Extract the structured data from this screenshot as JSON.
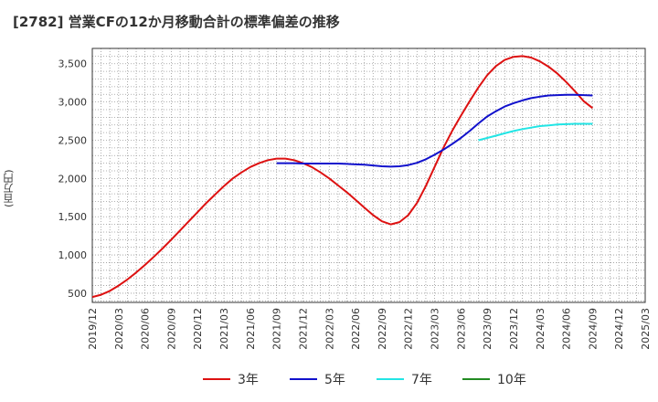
{
  "title": "[2782]  営業CFの12か月移動合計の標準偏差の推移",
  "chart_data": {
    "type": "line",
    "title": "[2782]  営業CFの12か月移動合計の標準偏差の推移",
    "xlabel": "",
    "ylabel": "(百万円)",
    "ylim": [
      380,
      3700
    ],
    "grid": true,
    "legend_placement": "bottom",
    "x_ticks": [
      "2019/12",
      "2020/03",
      "2020/06",
      "2020/09",
      "2020/12",
      "2021/03",
      "2021/06",
      "2021/09",
      "2021/12",
      "2022/03",
      "2022/06",
      "2022/09",
      "2022/12",
      "2023/03",
      "2023/06",
      "2023/09",
      "2023/12",
      "2024/03",
      "2024/06",
      "2024/09",
      "2024/12",
      "2025/03"
    ],
    "y_ticks": [
      500,
      1000,
      1500,
      2000,
      2500,
      3000,
      3500
    ],
    "y_tick_labels": [
      "500",
      "1,000",
      "1,500",
      "2,000",
      "2,500",
      "3,000",
      "3,500"
    ],
    "series": [
      {
        "name": "3年",
        "color": "#dd1111",
        "points": [
          [
            "2019/12",
            450
          ],
          [
            "2020/01",
            480
          ],
          [
            "2020/02",
            530
          ],
          [
            "2020/03",
            600
          ],
          [
            "2020/04",
            680
          ],
          [
            "2020/05",
            770
          ],
          [
            "2020/06",
            870
          ],
          [
            "2020/07",
            975
          ],
          [
            "2020/08",
            1085
          ],
          [
            "2020/09",
            1200
          ],
          [
            "2020/10",
            1320
          ],
          [
            "2020/11",
            1440
          ],
          [
            "2020/12",
            1560
          ],
          [
            "2021/01",
            1680
          ],
          [
            "2021/02",
            1790
          ],
          [
            "2021/03",
            1900
          ],
          [
            "2021/04",
            2000
          ],
          [
            "2021/05",
            2080
          ],
          [
            "2021/06",
            2150
          ],
          [
            "2021/07",
            2200
          ],
          [
            "2021/08",
            2240
          ],
          [
            "2021/09",
            2260
          ],
          [
            "2021/10",
            2260
          ],
          [
            "2021/11",
            2240
          ],
          [
            "2021/12",
            2200
          ],
          [
            "2022/01",
            2150
          ],
          [
            "2022/02",
            2080
          ],
          [
            "2022/03",
            2000
          ],
          [
            "2022/04",
            1910
          ],
          [
            "2022/05",
            1820
          ],
          [
            "2022/06",
            1720
          ],
          [
            "2022/07",
            1620
          ],
          [
            "2022/08",
            1520
          ],
          [
            "2022/09",
            1440
          ],
          [
            "2022/10",
            1400
          ],
          [
            "2022/11",
            1430
          ],
          [
            "2022/12",
            1520
          ],
          [
            "2023/01",
            1680
          ],
          [
            "2023/02",
            1900
          ],
          [
            "2023/03",
            2150
          ],
          [
            "2023/04",
            2400
          ],
          [
            "2023/05",
            2620
          ],
          [
            "2023/06",
            2820
          ],
          [
            "2023/07",
            3010
          ],
          [
            "2023/08",
            3190
          ],
          [
            "2023/09",
            3350
          ],
          [
            "2023/10",
            3470
          ],
          [
            "2023/11",
            3550
          ],
          [
            "2023/12",
            3590
          ],
          [
            "2024/01",
            3600
          ],
          [
            "2024/02",
            3580
          ],
          [
            "2024/03",
            3530
          ],
          [
            "2024/04",
            3460
          ],
          [
            "2024/05",
            3370
          ],
          [
            "2024/06",
            3260
          ],
          [
            "2024/07",
            3140
          ],
          [
            "2024/08",
            3010
          ],
          [
            "2024/09",
            2920
          ]
        ]
      },
      {
        "name": "5年",
        "color": "#1111cc",
        "points": [
          [
            "2021/09",
            2200
          ],
          [
            "2021/10",
            2200
          ],
          [
            "2021/11",
            2200
          ],
          [
            "2021/12",
            2195
          ],
          [
            "2022/01",
            2195
          ],
          [
            "2022/02",
            2195
          ],
          [
            "2022/03",
            2195
          ],
          [
            "2022/04",
            2195
          ],
          [
            "2022/05",
            2190
          ],
          [
            "2022/06",
            2185
          ],
          [
            "2022/07",
            2180
          ],
          [
            "2022/08",
            2170
          ],
          [
            "2022/09",
            2160
          ],
          [
            "2022/10",
            2155
          ],
          [
            "2022/11",
            2160
          ],
          [
            "2022/12",
            2175
          ],
          [
            "2023/01",
            2205
          ],
          [
            "2023/02",
            2250
          ],
          [
            "2023/03",
            2310
          ],
          [
            "2023/04",
            2375
          ],
          [
            "2023/05",
            2450
          ],
          [
            "2023/06",
            2530
          ],
          [
            "2023/07",
            2620
          ],
          [
            "2023/08",
            2720
          ],
          [
            "2023/09",
            2810
          ],
          [
            "2023/10",
            2880
          ],
          [
            "2023/11",
            2940
          ],
          [
            "2023/12",
            2985
          ],
          [
            "2024/01",
            3020
          ],
          [
            "2024/02",
            3050
          ],
          [
            "2024/03",
            3070
          ],
          [
            "2024/04",
            3085
          ],
          [
            "2024/05",
            3090
          ],
          [
            "2024/06",
            3095
          ],
          [
            "2024/07",
            3095
          ],
          [
            "2024/08",
            3090
          ],
          [
            "2024/09",
            3085
          ]
        ]
      },
      {
        "name": "7年",
        "color": "#22e5e5",
        "points": [
          [
            "2023/08",
            2500
          ],
          [
            "2023/09",
            2530
          ],
          [
            "2023/10",
            2560
          ],
          [
            "2023/11",
            2590
          ],
          [
            "2023/12",
            2620
          ],
          [
            "2024/01",
            2645
          ],
          [
            "2024/02",
            2665
          ],
          [
            "2024/03",
            2685
          ],
          [
            "2024/04",
            2695
          ],
          [
            "2024/05",
            2705
          ],
          [
            "2024/06",
            2710
          ],
          [
            "2024/07",
            2715
          ],
          [
            "2024/08",
            2715
          ],
          [
            "2024/09",
            2715
          ]
        ]
      },
      {
        "name": "10年",
        "color": "#228b22",
        "points": []
      }
    ]
  }
}
